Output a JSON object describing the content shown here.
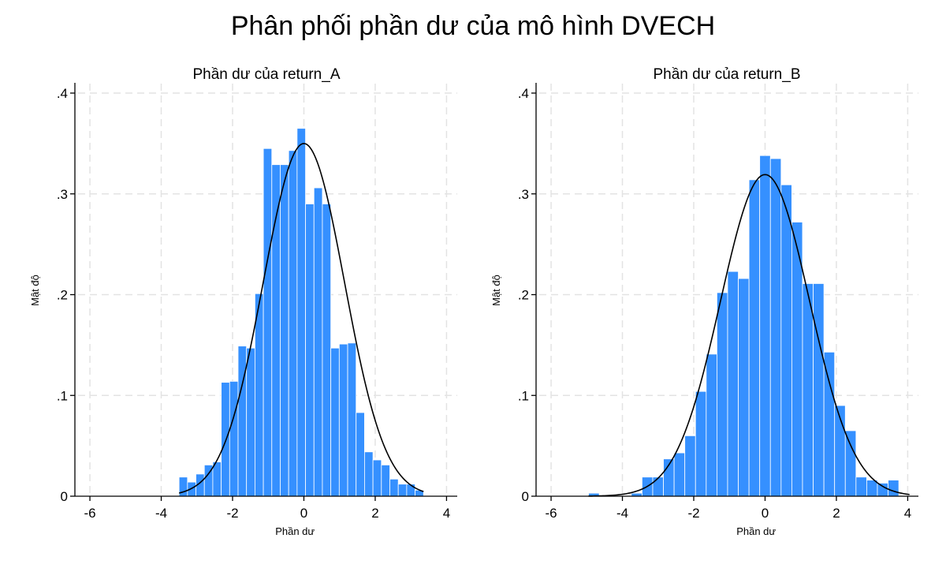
{
  "title": "Phân phối phần dư của mô hình DVECH",
  "colors": {
    "bar_fill": "#3590ff",
    "bar_stroke": "#ffffff",
    "grid": "#e3e3e3",
    "curve": "#000000",
    "axis": "#000000"
  },
  "chart_data": [
    {
      "type": "bar",
      "title": "Phần dư của return_A",
      "xlabel": "Phần dư",
      "ylabel": "Mật độ",
      "xlim": [
        -6.2,
        4.3
      ],
      "ylim": [
        0,
        0.4
      ],
      "xticks": [
        -6,
        -4,
        -2,
        0,
        2,
        4
      ],
      "yticks": [
        0,
        0.1,
        0.2,
        0.3,
        0.4
      ],
      "ytick_labels": [
        "0",
        ".1",
        ".2",
        ".3",
        ".4"
      ],
      "bin_start": -3.5,
      "bin_width": 0.2364,
      "values": [
        0.019,
        0.014,
        0.022,
        0.031,
        0.034,
        0.113,
        0.114,
        0.149,
        0.147,
        0.201,
        0.345,
        0.329,
        0.329,
        0.343,
        0.365,
        0.29,
        0.306,
        0.29,
        0.147,
        0.151,
        0.152,
        0.083,
        0.044,
        0.036,
        0.031,
        0.017,
        0.012,
        0.012,
        0.006
      ],
      "density_curve": {
        "mean": 0.0,
        "sd": 1.14
      }
    },
    {
      "type": "bar",
      "title": "Phần dư của return_B",
      "xlabel": "Phần dư",
      "ylabel": "Mật độ",
      "xlim": [
        -6.2,
        4.3
      ],
      "ylim": [
        0,
        0.4
      ],
      "xticks": [
        -6,
        -4,
        -2,
        0,
        2,
        4
      ],
      "yticks": [
        0,
        0.1,
        0.2,
        0.3,
        0.4
      ],
      "ytick_labels": [
        "0",
        ".1",
        ".2",
        ".3",
        ".4"
      ],
      "bin_start": -4.95,
      "bin_width": 0.3,
      "values": [
        0.003,
        0,
        0,
        0,
        0.003,
        0.019,
        0.019,
        0.037,
        0.043,
        0.06,
        0.104,
        0.141,
        0.202,
        0.223,
        0.216,
        0.314,
        0.338,
        0.335,
        0.309,
        0.272,
        0.211,
        0.211,
        0.143,
        0.09,
        0.065,
        0.019,
        0.016,
        0.013,
        0.016,
        0
      ],
      "density_curve": {
        "mean": 0.0,
        "sd": 1.25
      }
    }
  ]
}
